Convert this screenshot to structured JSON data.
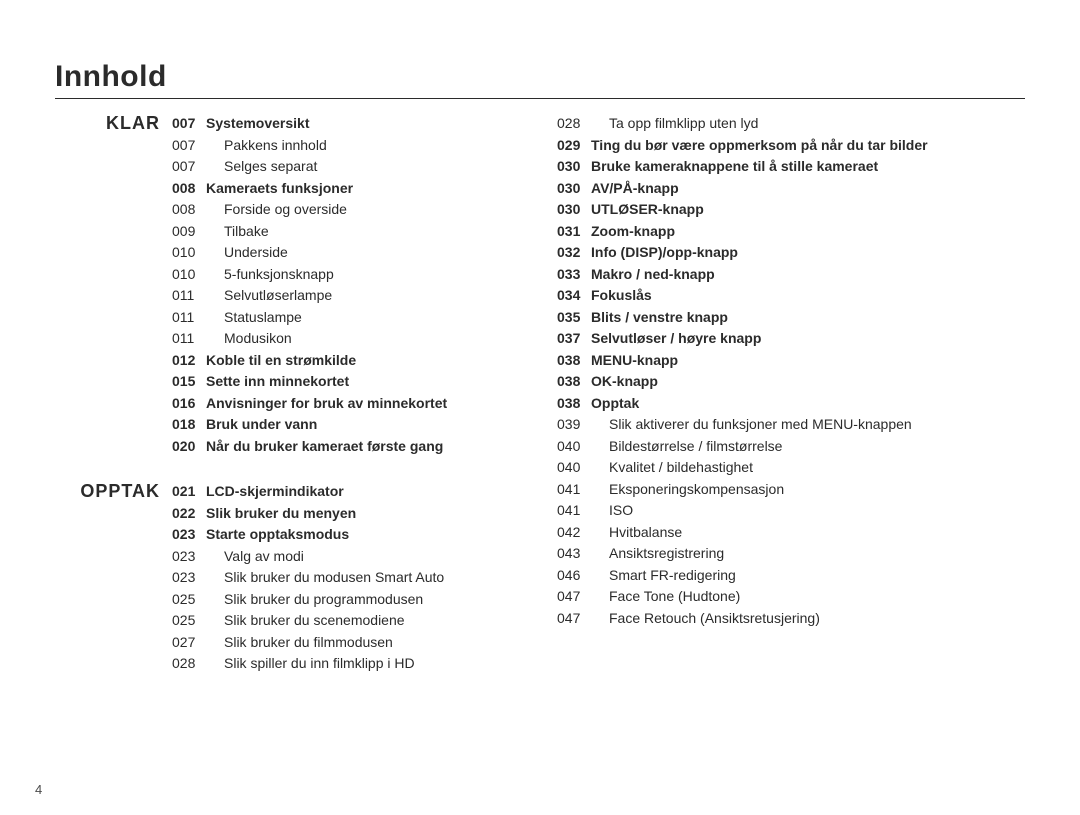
{
  "title": "Innhold",
  "page_number": "4",
  "sections": [
    {
      "label": "KLAR",
      "entries": [
        {
          "page": "007",
          "text": "Systemoversikt",
          "bold": true,
          "indent": false
        },
        {
          "page": "007",
          "text": "Pakkens innhold",
          "bold": false,
          "indent": true
        },
        {
          "page": "007",
          "text": "Selges separat",
          "bold": false,
          "indent": true
        },
        {
          "page": "008",
          "text": "Kameraets funksjoner",
          "bold": true,
          "indent": false
        },
        {
          "page": "008",
          "text": "Forside og overside",
          "bold": false,
          "indent": true
        },
        {
          "page": "009",
          "text": "Tilbake",
          "bold": false,
          "indent": true
        },
        {
          "page": "010",
          "text": "Underside",
          "bold": false,
          "indent": true
        },
        {
          "page": "010",
          "text": "5-funksjonsknapp",
          "bold": false,
          "indent": true
        },
        {
          "page": "011",
          "text": "Selvutløserlampe",
          "bold": false,
          "indent": true
        },
        {
          "page": "011",
          "text": "Statuslampe",
          "bold": false,
          "indent": true
        },
        {
          "page": "011",
          "text": "Modusikon",
          "bold": false,
          "indent": true
        },
        {
          "page": "012",
          "text": "Koble til en strømkilde",
          "bold": true,
          "indent": false
        },
        {
          "page": "015",
          "text": "Sette inn minnekortet",
          "bold": true,
          "indent": false
        },
        {
          "page": "016",
          "text": "Anvisninger for bruk av minnekortet",
          "bold": true,
          "indent": false
        },
        {
          "page": "018",
          "text": "Bruk under vann",
          "bold": true,
          "indent": false
        },
        {
          "page": "020",
          "text": "Når du bruker kameraet første gang",
          "bold": true,
          "indent": false
        }
      ]
    },
    {
      "label": "OPPTAK",
      "entries": [
        {
          "page": "021",
          "text": "LCD-skjermindikator",
          "bold": true,
          "indent": false
        },
        {
          "page": "022",
          "text": "Slik bruker du menyen",
          "bold": true,
          "indent": false
        },
        {
          "page": "023",
          "text": "Starte opptaksmodus",
          "bold": true,
          "indent": false
        },
        {
          "page": "023",
          "text": "Valg av modi",
          "bold": false,
          "indent": true
        },
        {
          "page": "023",
          "text": "Slik bruker du modusen Smart Auto",
          "bold": false,
          "indent": true
        },
        {
          "page": "025",
          "text": "Slik bruker du programmodusen",
          "bold": false,
          "indent": true
        },
        {
          "page": "025",
          "text": "Slik bruker du scenemodiene",
          "bold": false,
          "indent": true
        },
        {
          "page": "027",
          "text": "Slik bruker du filmmodusen",
          "bold": false,
          "indent": true
        },
        {
          "page": "028",
          "text": "Slik spiller du inn filmklipp i HD",
          "bold": false,
          "indent": true
        }
      ]
    }
  ],
  "sections_right": [
    {
      "label": "",
      "entries": [
        {
          "page": "028",
          "text": "Ta opp filmklipp uten lyd",
          "bold": false,
          "indent": true
        },
        {
          "page": "029",
          "text": "Ting du bør være oppmerksom på når du tar bilder",
          "bold": true,
          "indent": false
        },
        {
          "page": "030",
          "text": "Bruke kameraknappene til å stille kameraet",
          "bold": true,
          "indent": false
        },
        {
          "page": "030",
          "text": "AV/PÅ-knapp",
          "bold": true,
          "indent": false
        },
        {
          "page": "030",
          "text": "UTLØSER-knapp",
          "bold": true,
          "indent": false
        },
        {
          "page": "031",
          "text": "Zoom-knapp",
          "bold": true,
          "indent": false
        },
        {
          "page": "032",
          "text": "Info (DISP)/opp-knapp",
          "bold": true,
          "indent": false
        },
        {
          "page": "033",
          "text": "Makro / ned-knapp",
          "bold": true,
          "indent": false
        },
        {
          "page": "034",
          "text": "Fokuslås",
          "bold": true,
          "indent": false
        },
        {
          "page": "035",
          "text": "Blits / venstre knapp",
          "bold": true,
          "indent": false
        },
        {
          "page": "037",
          "text": "Selvutløser / høyre knapp",
          "bold": true,
          "indent": false
        },
        {
          "page": "038",
          "text": "MENU-knapp",
          "bold": true,
          "indent": false
        },
        {
          "page": "038",
          "text": "OK-knapp",
          "bold": true,
          "indent": false
        },
        {
          "page": "038",
          "text": "Opptak",
          "bold": true,
          "indent": false
        },
        {
          "page": "039",
          "text": "Slik aktiverer du funksjoner med MENU-knappen",
          "bold": false,
          "indent": true
        },
        {
          "page": "040",
          "text": "Bildestørrelse / filmstørrelse",
          "bold": false,
          "indent": true
        },
        {
          "page": "040",
          "text": "Kvalitet / bildehastighet",
          "bold": false,
          "indent": true
        },
        {
          "page": "041",
          "text": "Eksponeringskompensasjon",
          "bold": false,
          "indent": true
        },
        {
          "page": "041",
          "text": "ISO",
          "bold": false,
          "indent": true
        },
        {
          "page": "042",
          "text": "Hvitbalanse",
          "bold": false,
          "indent": true
        },
        {
          "page": "043",
          "text": "Ansiktsregistrering",
          "bold": false,
          "indent": true
        },
        {
          "page": "046",
          "text": "Smart FR-redigering",
          "bold": false,
          "indent": true
        },
        {
          "page": "047",
          "text": "Face Tone (Hudtone)",
          "bold": false,
          "indent": true
        },
        {
          "page": "047",
          "text": "Face Retouch (Ansiktsretusjering)",
          "bold": false,
          "indent": true
        }
      ]
    }
  ]
}
